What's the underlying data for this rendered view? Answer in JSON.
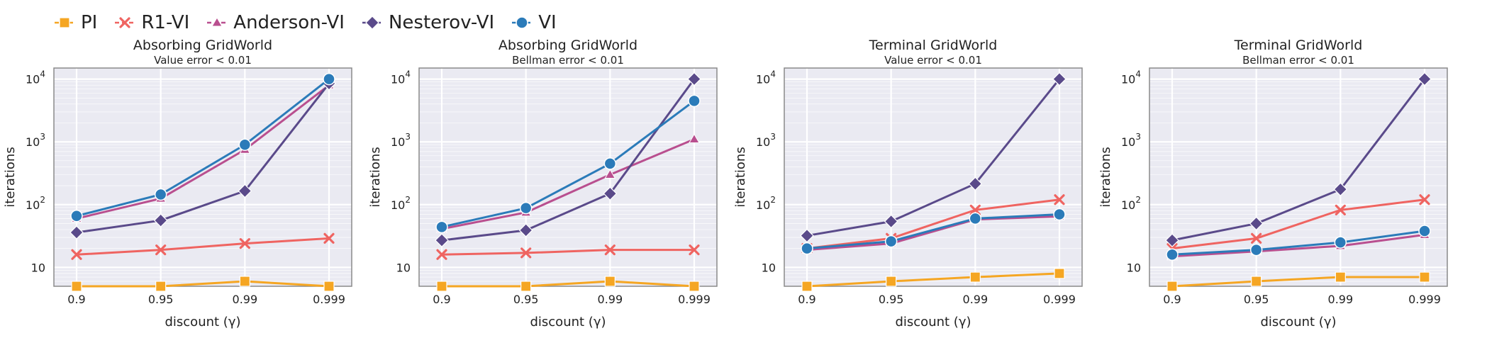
{
  "legend": [
    {
      "name": "PI",
      "color": "#f5a623",
      "marker": "square"
    },
    {
      "name": "R1-VI",
      "color": "#ef6461",
      "marker": "x"
    },
    {
      "name": "Anderson-VI",
      "color": "#b94f8f",
      "marker": "triangle"
    },
    {
      "name": "Nesterov-VI",
      "color": "#5a4a8a",
      "marker": "diamond"
    },
    {
      "name": "VI",
      "color": "#2b7bb9",
      "marker": "circle"
    }
  ],
  "chart_data": [
    {
      "type": "line",
      "title": "Absorbing GridWorld",
      "subtitle": "Value error < 0.01",
      "xlabel": "discount (γ)",
      "ylabel": "iterations",
      "yscale": "log",
      "ylim": [
        5,
        15000
      ],
      "categories": [
        "0.9",
        "0.95",
        "0.99",
        "0.999"
      ],
      "series": [
        {
          "name": "PI",
          "values": [
            5,
            5,
            6,
            5
          ]
        },
        {
          "name": "R1-VI",
          "values": [
            16,
            19,
            24,
            29
          ]
        },
        {
          "name": "Anderson-VI",
          "values": [
            60,
            125,
            750,
            8000
          ]
        },
        {
          "name": "Nesterov-VI",
          "values": [
            36,
            56,
            165,
            8500
          ]
        },
        {
          "name": "VI",
          "values": [
            66,
            145,
            900,
            10000
          ]
        }
      ]
    },
    {
      "type": "line",
      "title": "Absorbing GridWorld",
      "subtitle": "Bellman error < 0.01",
      "xlabel": "discount (γ)",
      "ylabel": "iterations",
      "yscale": "log",
      "ylim": [
        5,
        15000
      ],
      "categories": [
        "0.9",
        "0.95",
        "0.99",
        "0.999"
      ],
      "series": [
        {
          "name": "PI",
          "values": [
            5,
            5,
            6,
            5
          ]
        },
        {
          "name": "R1-VI",
          "values": [
            16,
            17,
            19,
            19
          ]
        },
        {
          "name": "Anderson-VI",
          "values": [
            41,
            75,
            300,
            1100
          ]
        },
        {
          "name": "Nesterov-VI",
          "values": [
            27,
            39,
            150,
            10000
          ]
        },
        {
          "name": "VI",
          "values": [
            44,
            88,
            450,
            4500
          ]
        }
      ]
    },
    {
      "type": "line",
      "title": "Terminal GridWorld",
      "subtitle": "Value error < 0.01",
      "xlabel": "discount (γ)",
      "ylabel": "iterations",
      "yscale": "log",
      "ylim": [
        5,
        15000
      ],
      "categories": [
        "0.9",
        "0.95",
        "0.99",
        "0.999"
      ],
      "series": [
        {
          "name": "PI",
          "values": [
            5,
            6,
            7,
            8
          ]
        },
        {
          "name": "R1-VI",
          "values": [
            20,
            29,
            82,
            120
          ]
        },
        {
          "name": "Anderson-VI",
          "values": [
            19,
            24,
            58,
            65
          ]
        },
        {
          "name": "Nesterov-VI",
          "values": [
            32,
            54,
            215,
            10000
          ]
        },
        {
          "name": "VI",
          "values": [
            20,
            26,
            60,
            70
          ]
        }
      ]
    },
    {
      "type": "line",
      "title": "Terminal GridWorld",
      "subtitle": "Bellman error < 0.01",
      "xlabel": "discount (γ)",
      "ylabel": "iterations",
      "yscale": "log",
      "ylim": [
        5,
        15000
      ],
      "categories": [
        "0.9",
        "0.95",
        "0.99",
        "0.999"
      ],
      "series": [
        {
          "name": "PI",
          "values": [
            5,
            6,
            7,
            7
          ]
        },
        {
          "name": "R1-VI",
          "values": [
            20,
            29,
            82,
            120
          ]
        },
        {
          "name": "Anderson-VI",
          "values": [
            15,
            18,
            22,
            33
          ]
        },
        {
          "name": "Nesterov-VI",
          "values": [
            27,
            50,
            175,
            10000
          ]
        },
        {
          "name": "VI",
          "values": [
            16,
            19,
            25,
            38
          ]
        }
      ]
    }
  ]
}
